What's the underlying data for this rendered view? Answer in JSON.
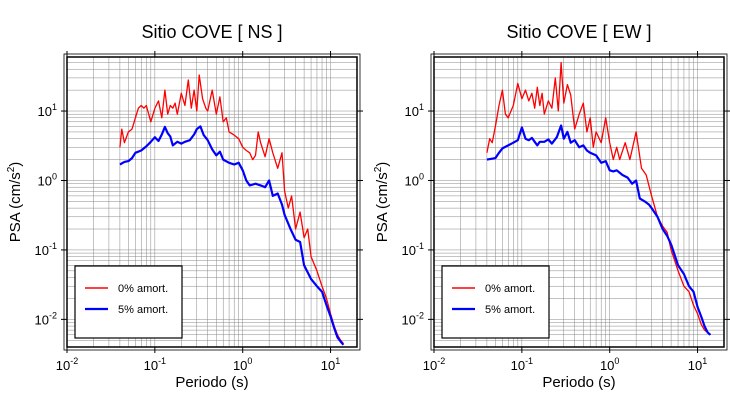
{
  "chart_data": [
    {
      "type": "line",
      "title": "Sitio COVE [ NS ]",
      "xlabel": "Periodo (s)",
      "ylabel_main": "PSA (cm/s",
      "ylabel_sup": "2",
      "ylabel_tail": ")",
      "x_scale": "log",
      "y_scale": "log",
      "xlim": [
        0.01,
        20
      ],
      "ylim": [
        0.004,
        60
      ],
      "x_ticks": [
        0.01,
        0.1,
        1,
        10
      ],
      "y_ticks": [
        0.01,
        0.1,
        1,
        10
      ],
      "grid": true,
      "legend_position": "bottom-left",
      "series": [
        {
          "name": "0% amort.",
          "color": "#ff0000",
          "x": [
            0.04,
            0.042,
            0.045,
            0.05,
            0.055,
            0.06,
            0.065,
            0.07,
            0.075,
            0.08,
            0.09,
            0.1,
            0.11,
            0.12,
            0.13,
            0.14,
            0.15,
            0.16,
            0.17,
            0.18,
            0.2,
            0.22,
            0.24,
            0.26,
            0.28,
            0.3,
            0.32,
            0.35,
            0.38,
            0.4,
            0.45,
            0.5,
            0.55,
            0.6,
            0.65,
            0.7,
            0.8,
            0.9,
            1.0,
            1.1,
            1.2,
            1.3,
            1.4,
            1.5,
            1.6,
            1.8,
            2.0,
            2.2,
            2.5,
            2.8,
            3.0,
            3.3,
            3.6,
            4.0,
            4.5,
            5.0,
            5.5,
            6.0,
            7.0,
            8.0,
            9.0,
            10.0,
            11.0,
            12.0,
            13.0,
            14.0
          ],
          "y": [
            3,
            5.5,
            3.5,
            5,
            5.5,
            8,
            11,
            12,
            11,
            12,
            7,
            11,
            14,
            8,
            20,
            9,
            12,
            11,
            13,
            9,
            18,
            12,
            28,
            11,
            20,
            10,
            33,
            15,
            11,
            10,
            20,
            9,
            16,
            7,
            8,
            5,
            4.5,
            4,
            3,
            2.7,
            2.5,
            2,
            2.3,
            5,
            3.5,
            2.2,
            4,
            2.5,
            1.5,
            2.5,
            0.7,
            0.4,
            0.6,
            0.2,
            0.35,
            0.15,
            0.2,
            0.08,
            0.05,
            0.03,
            0.02,
            0.012,
            0.008,
            0.006,
            0.005,
            0.0045
          ]
        },
        {
          "name": "5% amort.",
          "color": "#0000ff",
          "x": [
            0.04,
            0.045,
            0.05,
            0.055,
            0.06,
            0.07,
            0.08,
            0.09,
            0.1,
            0.11,
            0.12,
            0.13,
            0.14,
            0.15,
            0.16,
            0.18,
            0.2,
            0.22,
            0.25,
            0.28,
            0.3,
            0.33,
            0.36,
            0.4,
            0.45,
            0.5,
            0.55,
            0.6,
            0.7,
            0.8,
            0.9,
            1.0,
            1.1,
            1.2,
            1.4,
            1.6,
            1.8,
            2.0,
            2.2,
            2.5,
            2.8,
            3.0,
            3.5,
            4.0,
            4.5,
            5.0,
            6.0,
            7.0,
            8.0,
            9.0,
            10.0,
            11.0,
            12.0,
            13.0,
            14.0
          ],
          "y": [
            1.7,
            1.85,
            1.9,
            2.1,
            2.5,
            2.7,
            3.1,
            3.6,
            4.2,
            3.7,
            4.6,
            5.9,
            4.8,
            4.3,
            3.2,
            3.6,
            3.4,
            3.6,
            3.8,
            4.6,
            5.5,
            6.0,
            4.5,
            3.8,
            2.8,
            2.3,
            2.6,
            2.0,
            1.8,
            1.7,
            1.8,
            1.4,
            1.0,
            0.85,
            0.9,
            0.85,
            0.8,
            1.0,
            0.6,
            0.65,
            0.45,
            0.32,
            0.2,
            0.14,
            0.13,
            0.06,
            0.038,
            0.03,
            0.025,
            0.016,
            0.011,
            0.0075,
            0.0055,
            0.0048,
            0.0043
          ]
        }
      ]
    },
    {
      "type": "line",
      "title": "Sitio COVE [ EW ]",
      "xlabel": "Periodo (s)",
      "ylabel_main": "PSA (cm/s",
      "ylabel_sup": "2",
      "ylabel_tail": ")",
      "x_scale": "log",
      "y_scale": "log",
      "xlim": [
        0.01,
        20
      ],
      "ylim": [
        0.004,
        60
      ],
      "x_ticks": [
        0.01,
        0.1,
        1,
        10
      ],
      "y_ticks": [
        0.01,
        0.1,
        1,
        10
      ],
      "grid": true,
      "legend_position": "bottom-left",
      "series": [
        {
          "name": "0% amort.",
          "color": "#ff0000",
          "x": [
            0.04,
            0.043,
            0.046,
            0.05,
            0.055,
            0.06,
            0.065,
            0.07,
            0.08,
            0.09,
            0.1,
            0.11,
            0.12,
            0.13,
            0.14,
            0.15,
            0.16,
            0.17,
            0.18,
            0.2,
            0.22,
            0.24,
            0.26,
            0.28,
            0.3,
            0.33,
            0.36,
            0.4,
            0.45,
            0.5,
            0.55,
            0.6,
            0.65,
            0.7,
            0.8,
            0.9,
            1.0,
            1.1,
            1.2,
            1.3,
            1.5,
            1.7,
            2.0,
            2.3,
            2.6,
            3.0,
            3.5,
            4.0,
            4.5,
            5.0,
            5.5,
            6.0,
            7.0,
            8.0,
            9.0,
            10.0,
            11.0,
            12.0,
            13.0,
            14.0
          ],
          "y": [
            2.5,
            4,
            3.5,
            6,
            12,
            20,
            9,
            8,
            12,
            25,
            15,
            20,
            14,
            18,
            11,
            22,
            12,
            18,
            9,
            14,
            11,
            30,
            10,
            50,
            13,
            24,
            17,
            5.5,
            9,
            13,
            5,
            8,
            3,
            5,
            3.5,
            8,
            3.5,
            2,
            3,
            2,
            3.5,
            2,
            5,
            1.5,
            1.2,
            0.6,
            0.3,
            0.22,
            0.18,
            0.1,
            0.07,
            0.05,
            0.03,
            0.025,
            0.016,
            0.012,
            0.0085,
            0.007,
            0.0065,
            0.006
          ]
        },
        {
          "name": "5% amort.",
          "color": "#0000ff",
          "x": [
            0.04,
            0.045,
            0.05,
            0.055,
            0.06,
            0.07,
            0.08,
            0.09,
            0.1,
            0.11,
            0.12,
            0.13,
            0.14,
            0.15,
            0.16,
            0.18,
            0.2,
            0.22,
            0.25,
            0.28,
            0.3,
            0.33,
            0.36,
            0.4,
            0.45,
            0.5,
            0.55,
            0.6,
            0.7,
            0.8,
            0.9,
            1.0,
            1.1,
            1.2,
            1.4,
            1.6,
            1.8,
            2.0,
            2.2,
            2.5,
            2.8,
            3.0,
            3.5,
            4.0,
            4.5,
            5.0,
            6.0,
            7.0,
            8.0,
            9.0,
            10.0,
            11.0,
            12.0,
            13.0,
            14.0
          ],
          "y": [
            2.0,
            2.05,
            2.1,
            2.5,
            2.9,
            3.2,
            3.5,
            3.8,
            5.8,
            4.0,
            3.8,
            4.1,
            3.6,
            3.2,
            3.6,
            3.6,
            3.9,
            3.4,
            4.2,
            6.2,
            4.0,
            5.0,
            3.5,
            3.8,
            3.0,
            3.2,
            2.7,
            2.5,
            2.3,
            1.8,
            1.9,
            1.4,
            1.35,
            1.4,
            1.2,
            1.1,
            0.9,
            1.0,
            0.55,
            0.5,
            0.45,
            0.4,
            0.3,
            0.2,
            0.16,
            0.12,
            0.06,
            0.045,
            0.03,
            0.025,
            0.015,
            0.011,
            0.008,
            0.0065,
            0.006
          ]
        }
      ]
    }
  ]
}
